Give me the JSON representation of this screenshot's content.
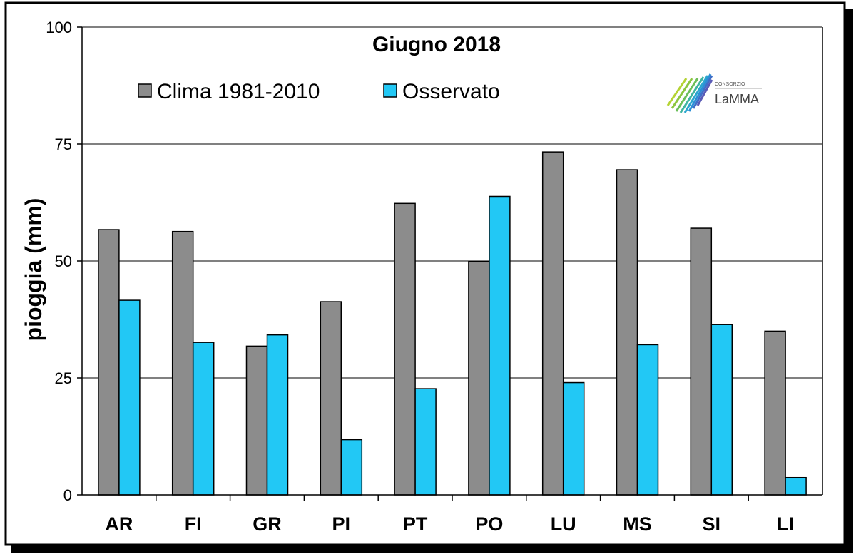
{
  "chart_data": {
    "type": "bar",
    "title": "Giugno 2018",
    "ylabel": "pioggia  (mm)",
    "xlabel": "",
    "categories": [
      "AR",
      "FI",
      "GR",
      "PI",
      "PT",
      "PO",
      "LU",
      "MS",
      "SI",
      "LI"
    ],
    "series": [
      {
        "name": "Clima 1981-2010",
        "color": "#8c8c8c",
        "values": [
          56.7,
          56.3,
          31.8,
          41.3,
          62.3,
          49.9,
          73.3,
          69.5,
          57.0,
          35.0
        ]
      },
      {
        "name": "Osservato",
        "color": "#22c8f5",
        "values": [
          41.6,
          32.6,
          34.2,
          11.8,
          22.7,
          63.8,
          24.0,
          32.1,
          36.4,
          3.7
        ]
      }
    ],
    "ylim": [
      0,
      100
    ],
    "yticks": [
      0,
      25,
      50,
      75,
      100
    ],
    "grid": true,
    "legend": "top-left",
    "logo": {
      "text_small": "CONSORZIO",
      "text_main": "LaMMA"
    }
  }
}
